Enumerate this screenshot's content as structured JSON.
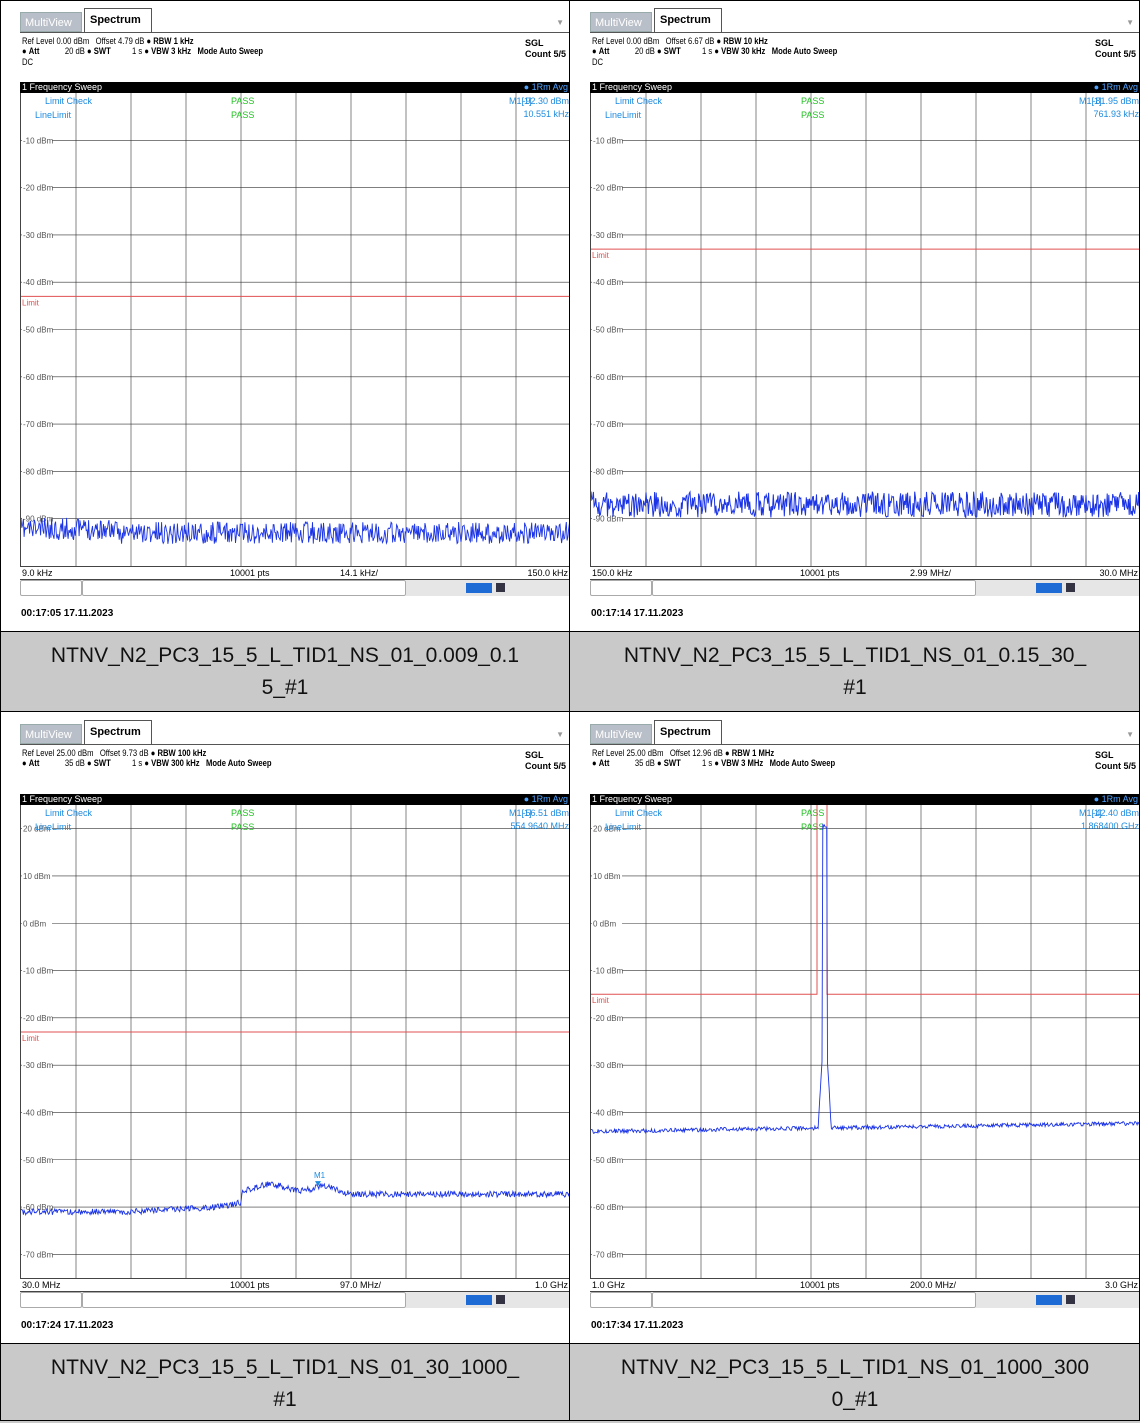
{
  "tabs": {
    "multiview": "MultiView",
    "spectrum": "Spectrum"
  },
  "ui": {
    "sweep_title": "1 Frequency Sweep",
    "rm_avg": "1Rm Avg",
    "limit_check": "Limit Check",
    "line_limit": "LineLimit",
    "pass": "PASS",
    "limit_label": "Limit",
    "pts": "10001 pts",
    "sgl": "SGL",
    "count": "Count 5/5",
    "mode": "Mode Auto Sweep",
    "dc": "DC"
  },
  "colors": {
    "trace": "#1a33e6",
    "limit": "#e05050",
    "pass": "#22c022",
    "info": "#1d8be0",
    "caption_bg": "#c9c9c9"
  },
  "panels": [
    {
      "ref_level": "Ref Level 0.00 dBm",
      "offset": "Offset 4.79 dB",
      "rbw": "RBW 1 kHz",
      "att": "Att",
      "att_val": "20 dB",
      "swt": "SWT",
      "swt_val": "1 s",
      "vbw": "VBW 3 kHz",
      "marker": "M1[1]",
      "marker_level": "-92.30 dBm",
      "marker_freq": "10.551 kHz",
      "freq_start": "9.0 kHz",
      "freq_step": "14.1 kHz/",
      "freq_stop": "150.0 kHz",
      "timestamp": "00:17:05  17.11.2023",
      "show_dc": true,
      "caption_l1": "NTNV_N2_PC3_15_5_L_TID1_NS_01_0.009_0.1",
      "caption_l2": "5_#1",
      "chart_data": {
        "type": "line",
        "yticks": [
          "-10 dBm",
          "-20 dBm",
          "-30 dBm",
          "-40 dBm",
          "-50 dBm",
          "-60 dBm",
          "-70 dBm",
          "-80 dBm",
          "-90 dBm"
        ],
        "ylim": [
          -100,
          0
        ],
        "limit_dbm": -43,
        "noise_floor_dbm": -93,
        "x": [
          "9.0 kHz",
          "150.0 kHz"
        ]
      }
    },
    {
      "ref_level": "Ref Level 0.00 dBm",
      "offset": "Offset 6.67 dB",
      "rbw": "RBW 10 kHz",
      "att": "Att",
      "att_val": "20 dB",
      "swt": "SWT",
      "swt_val": "1 s",
      "vbw": "VBW 30 kHz",
      "marker": "M1[1]",
      "marker_level": "-81.95 dBm",
      "marker_freq": "761.93 kHz",
      "freq_start": "150.0 kHz",
      "freq_step": "2.99 MHz/",
      "freq_stop": "30.0 MHz",
      "timestamp": "00:17:14  17.11.2023",
      "show_dc": true,
      "caption_l1": "NTNV_N2_PC3_15_5_L_TID1_NS_01_0.15_30_",
      "caption_l2": "#1",
      "chart_data": {
        "type": "line",
        "yticks": [
          "-10 dBm",
          "-20 dBm",
          "-30 dBm",
          "-40 dBm",
          "-50 dBm",
          "-60 dBm",
          "-70 dBm",
          "-80 dBm",
          "-90 dBm"
        ],
        "ylim": [
          -100,
          0
        ],
        "limit_dbm": -33,
        "noise_floor_dbm": -87,
        "x": [
          "150.0 kHz",
          "30.0 MHz"
        ]
      }
    },
    {
      "ref_level": "Ref Level 25.00 dBm",
      "offset": "Offset 9.73 dB",
      "rbw": "RBW 100 kHz",
      "att": "Att",
      "att_val": "35 dB",
      "swt": "SWT",
      "swt_val": "1 s",
      "vbw": "VBW 300 kHz",
      "marker": "M1[1]",
      "marker_level": "-56.51 dBm",
      "marker_freq": "554.9640 MHz",
      "freq_start": "30.0 MHz",
      "freq_step": "97.0 MHz/",
      "freq_stop": "1.0 GHz",
      "timestamp": "00:17:24  17.11.2023",
      "show_dc": false,
      "caption_l1": "NTNV_N2_PC3_15_5_L_TID1_NS_01_30_1000_",
      "caption_l2": "#1",
      "chart_data": {
        "type": "line",
        "yticks": [
          "20 dBm",
          "10 dBm",
          "0 dBm",
          "-10 dBm",
          "-20 dBm",
          "-30 dBm",
          "-40 dBm",
          "-50 dBm",
          "-60 dBm",
          "-70 dBm"
        ],
        "ylim": [
          -75,
          25
        ],
        "limit_dbm": -23,
        "noise_floor_dbm": -61,
        "x": [
          "30.0 MHz",
          "1.0 GHz"
        ],
        "marker_label": "M1"
      }
    },
    {
      "ref_level": "Ref Level 25.00 dBm",
      "offset": "Offset 12.96 dB",
      "rbw": "RBW 1 MHz",
      "att": "Att",
      "att_val": "35 dB",
      "swt": "SWT",
      "swt_val": "1 s",
      "vbw": "VBW 3 MHz",
      "marker": "M1[1]",
      "marker_level": "-42.40 dBm",
      "marker_freq": "1.868400 GHz",
      "freq_start": "1.0 GHz",
      "freq_step": "200.0 MHz/",
      "freq_stop": "3.0 GHz",
      "timestamp": "00:17:34  17.11.2023",
      "show_dc": false,
      "caption_l1": "NTNV_N2_PC3_15_5_L_TID1_NS_01_1000_300",
      "caption_l2": "0_#1",
      "chart_data": {
        "type": "line",
        "yticks": [
          "20 dBm",
          "10 dBm",
          "0 dBm",
          "-10 dBm",
          "-20 dBm",
          "-30 dBm",
          "-40 dBm",
          "-50 dBm",
          "-60 dBm",
          "-70 dBm"
        ],
        "ylim": [
          -75,
          25
        ],
        "limit_dbm": -15,
        "noise_floor_dbm": -44,
        "peak_dbm": 20,
        "x": [
          "1.0 GHz",
          "3.0 GHz"
        ]
      }
    }
  ]
}
